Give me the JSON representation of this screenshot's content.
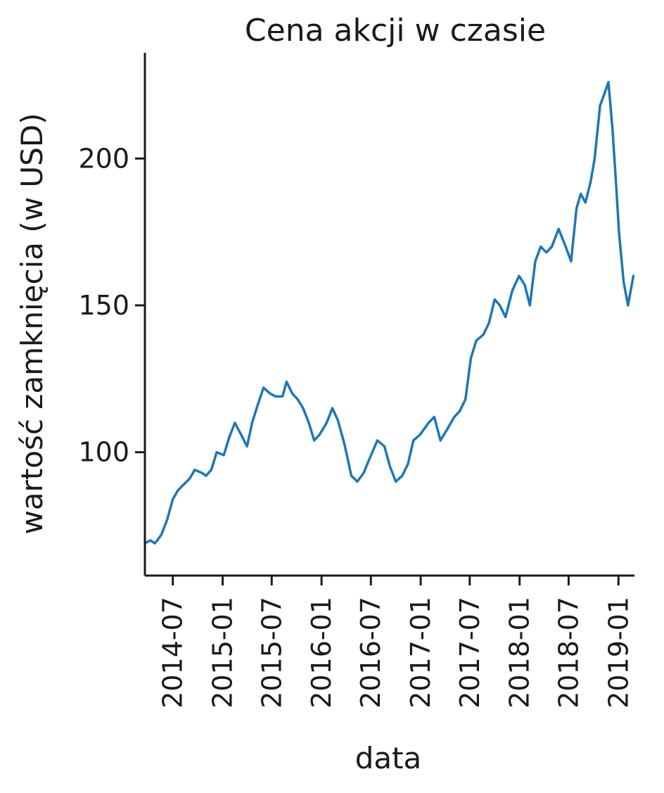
{
  "chart_data": {
    "type": "line",
    "title": "Cena akcji w czasie",
    "xlabel": "data",
    "ylabel": "wartość zamknięcia (w USD)",
    "x_type": "date",
    "xlim": [
      "2014-03-20",
      "2019-03-01"
    ],
    "ylim": [
      58,
      236
    ],
    "x_ticks": [
      "2014-07",
      "2015-01",
      "2015-07",
      "2016-01",
      "2016-07",
      "2017-01",
      "2017-07",
      "2018-01",
      "2018-07",
      "2019-01"
    ],
    "y_ticks": [
      100,
      150,
      200
    ],
    "grid": false,
    "legend": "none",
    "series_color": "#1f77b4",
    "series": [
      {
        "x": [
          "2014-03-20",
          "2014-04-10",
          "2014-04-25",
          "2014-05-05",
          "2014-05-20",
          "2014-06-10",
          "2014-07-01",
          "2014-07-20",
          "2014-08-10",
          "2014-09-01",
          "2014-09-20",
          "2014-10-15",
          "2014-11-01",
          "2014-11-20",
          "2014-12-10",
          "2015-01-05",
          "2015-01-25",
          "2015-02-15",
          "2015-03-10",
          "2015-04-01",
          "2015-04-20",
          "2015-05-10",
          "2015-06-01",
          "2015-06-25",
          "2015-07-15",
          "2015-08-10",
          "2015-08-25",
          "2015-09-15",
          "2015-10-05",
          "2015-10-25",
          "2015-11-15",
          "2015-12-05",
          "2015-12-25",
          "2016-01-20",
          "2016-02-10",
          "2016-03-01",
          "2016-03-25",
          "2016-04-20",
          "2016-05-12",
          "2016-06-05",
          "2016-06-27",
          "2016-07-25",
          "2016-08-20",
          "2016-09-10",
          "2016-10-01",
          "2016-10-25",
          "2016-11-15",
          "2016-12-05",
          "2016-12-30",
          "2017-01-30",
          "2017-02-20",
          "2017-03-15",
          "2017-04-10",
          "2017-05-05",
          "2017-05-25",
          "2017-06-15",
          "2017-07-05",
          "2017-07-25",
          "2017-08-20",
          "2017-09-10",
          "2017-10-01",
          "2017-10-20",
          "2017-11-10",
          "2017-12-05",
          "2017-12-30",
          "2018-01-20",
          "2018-02-08",
          "2018-02-28",
          "2018-03-20",
          "2018-04-10",
          "2018-04-30",
          "2018-05-25",
          "2018-06-20",
          "2018-07-10",
          "2018-07-30",
          "2018-08-15",
          "2018-09-01",
          "2018-09-20",
          "2018-10-05",
          "2018-10-25",
          "2018-11-10",
          "2018-11-25",
          "2018-12-10",
          "2018-12-24",
          "2019-01-03",
          "2019-01-20",
          "2019-02-05",
          "2019-02-25"
        ],
        "y": [
          69,
          70,
          69,
          70,
          72,
          77,
          84,
          87,
          89,
          91,
          94,
          93,
          92,
          94,
          100,
          99,
          105,
          110,
          106,
          102,
          110,
          116,
          122,
          120,
          119,
          119,
          124,
          120,
          118,
          115,
          110,
          104,
          106,
          110,
          115,
          111,
          103,
          92,
          90,
          93,
          98,
          104,
          102,
          95,
          90,
          92,
          96,
          104,
          106,
          110,
          112,
          104,
          108,
          112,
          114,
          118,
          132,
          138,
          140,
          144,
          152,
          150,
          146,
          155,
          160,
          157,
          150,
          165,
          170,
          168,
          170,
          176,
          170,
          165,
          183,
          188,
          185,
          192,
          200,
          218,
          222,
          226,
          210,
          190,
          175,
          158,
          150,
          160
        ]
      }
    ]
  }
}
